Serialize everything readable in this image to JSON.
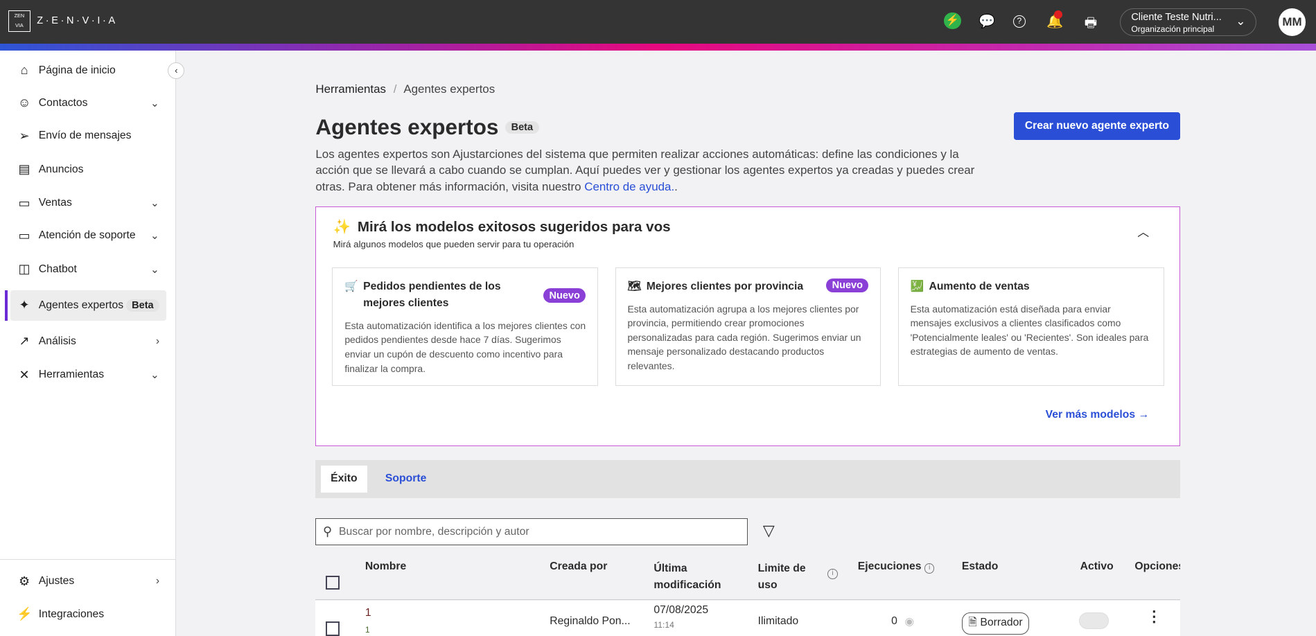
{
  "header": {
    "logo": "Z·E·N·V·I·A",
    "org_name": "Cliente Teste Nutri...",
    "org_sub": "Organización principal",
    "avatar": "MM",
    "icons": [
      "bolt-icon",
      "chat-icon",
      "help-icon",
      "bell-icon",
      "printer-icon"
    ],
    "accent": "#2a4fd6"
  },
  "sidebar": {
    "items": [
      {
        "label": "Página de inicio",
        "icon": "⌂",
        "chev": ""
      },
      {
        "label": "Contactos",
        "icon": "☺",
        "chev": "⌄"
      },
      {
        "label": "Envío de mensajes",
        "icon": "➢",
        "chev": ""
      },
      {
        "label": "Anuncios",
        "icon": "▤",
        "chev": ""
      },
      {
        "label": "Ventas",
        "icon": "▭",
        "chev": "⌄"
      },
      {
        "label": "Atención de soporte",
        "icon": "▭",
        "chev": "⌄"
      },
      {
        "label": "Chatbot",
        "icon": "◫",
        "chev": "⌄"
      },
      {
        "label": "Agentes expertos",
        "icon": "✦",
        "chev": ""
      },
      {
        "label": "Análisis",
        "icon": "↗",
        "chev": "›"
      },
      {
        "label": "Herramientas",
        "icon": "✕",
        "chev": "⌄"
      }
    ],
    "beta": "Beta",
    "bottom": [
      {
        "label": "Ajustes",
        "icon": "⚙",
        "chev": "›"
      },
      {
        "label": "Integraciones",
        "icon": "⚡",
        "chev": ""
      }
    ]
  },
  "main": {
    "breadcrumb": [
      "Herramientas",
      "/",
      "Agentes expertos"
    ],
    "title": "Agentes expertos",
    "beta": "Beta",
    "create_button": "Crear nuevo agente experto",
    "description": "Los agentes expertos son Ajustarciones del sistema que permiten realizar acciones automáticas: define las condiciones y la acción que se llevará a cabo cuando se cumplan. Aquí puedes ver y gestionar los agentes expertos ya creadas y puedes crear otras. Para obtener más información, visita nuestro ",
    "help_link": "Centro de ayuda.",
    "desc_end": ".",
    "suggestions": {
      "title": "Mirá los modelos exitosos sugeridos para vos",
      "subtitle": "Mirá algunos modelos que pueden servir para tu operación",
      "more": "Ver más modelos →",
      "cards": [
        {
          "title": "Pedidos pendientes de los mejores clientes",
          "badge": "Nuevo",
          "icon": "🛒",
          "desc": "Esta automatización identifica a los mejores clientes con pedidos pendientes desde hace 7 días. Sugerimos enviar un cupón de descuento como incentivo para finalizar la compra."
        },
        {
          "title": "Mejores clientes por provincia",
          "badge": "Nuevo",
          "icon": "🗺",
          "desc": "Esta automatización agrupa a los mejores clientes por provincia, permitiendo crear promociones personalizadas para cada región. Sugerimos enviar un mensaje personalizado destacando productos relevantes."
        },
        {
          "title": "Aumento de ventas",
          "badge": "",
          "icon": "💹",
          "desc": "Esta automatización está diseñada para enviar mensajes exclusivos a clientes clasificados como 'Potencialmente leales' ou 'Recientes'. Son ideales para estrategias de aumento de ventas."
        }
      ]
    },
    "tabs": [
      "Éxito",
      "Soporte"
    ],
    "search_placeholder": "Buscar por nombre, descripción y autor",
    "table": {
      "headers": [
        "Nombre",
        "Creada por",
        "Última modificación",
        "Limite de uso",
        "Ejecuciones",
        "Estado",
        "Activo",
        "Opciones"
      ],
      "rows": [
        {
          "name": "1",
          "desc": "1",
          "author": "Reginaldo Pon...",
          "date": "07/08/2025",
          "time": "11:14",
          "limit": "Ilimitado",
          "executions": "0",
          "status": "Borrador",
          "active": false
        }
      ]
    }
  }
}
